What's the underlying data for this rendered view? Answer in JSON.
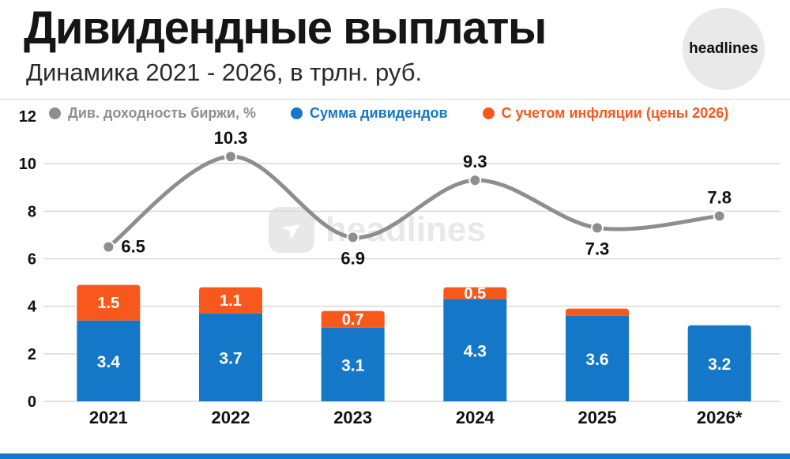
{
  "header": {
    "title": "Дивидендные выплаты",
    "subtitle": "Динамика 2021 - 2026, в трлн. руб.",
    "logo_text": "headlines"
  },
  "legend": [
    {
      "label": "Див. доходность биржи, %",
      "color": "#8e8e8e"
    },
    {
      "label": "Сумма дивидендов",
      "color": "#1577c8"
    },
    {
      "label": "С учетом инфляции (цены 2026)",
      "color": "#f8581c"
    }
  ],
  "watermark": {
    "text": "headlines"
  },
  "accent_color": "#1577c8",
  "chart_data": {
    "type": "bar",
    "title": "Дивидендные выплаты",
    "subtitle": "Динамика 2021 - 2026, в трлн. руб.",
    "categories": [
      "2021",
      "2022",
      "2023",
      "2024",
      "2025",
      "2026*"
    ],
    "series": [
      {
        "name": "Сумма дивидендов",
        "type": "bar",
        "stack": true,
        "color": "#1577c8",
        "values": [
          3.4,
          3.7,
          3.1,
          4.3,
          3.6,
          3.2
        ],
        "labels": [
          "3.4",
          "3.7",
          "3.1",
          "4.3",
          "3.6",
          "3.2"
        ]
      },
      {
        "name": "С учетом инфляции (цены 2026)",
        "type": "bar",
        "stack": true,
        "color": "#f8581c",
        "values": [
          1.5,
          1.1,
          0.7,
          0.5,
          0.3,
          0
        ],
        "labels": [
          "1.5",
          "1.1",
          "0.7",
          "0.5",
          "",
          ""
        ]
      },
      {
        "name": "Див. доходность биржи, %",
        "type": "line",
        "color": "#8e8e8e",
        "values": [
          6.5,
          10.3,
          6.9,
          9.3,
          7.3,
          7.8
        ],
        "labels": [
          "6.5",
          "10.3",
          "6.9",
          "9.3",
          "7.3",
          "7.8"
        ],
        "label_positions": [
          "right",
          "above",
          "below",
          "above",
          "below",
          "above"
        ]
      }
    ],
    "ylim": [
      0,
      12
    ],
    "yticks": [
      0,
      2,
      4,
      6,
      8,
      10,
      12
    ],
    "grid": true,
    "legend_position": "top"
  }
}
